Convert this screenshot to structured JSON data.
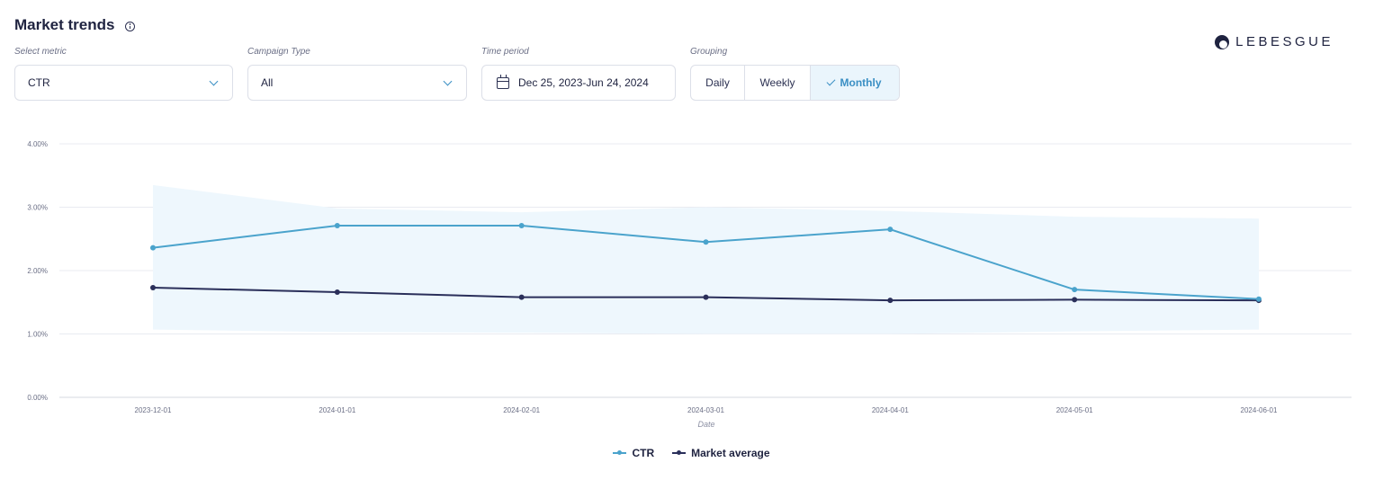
{
  "header": {
    "title": "Market trends",
    "logo_text": "LEBESGUE"
  },
  "filters": {
    "metric": {
      "label": "Select metric",
      "value": "CTR"
    },
    "campaign": {
      "label": "Campaign Type",
      "value": "All"
    },
    "period": {
      "label": "Time period",
      "value": "Dec 25, 2023-Jun 24, 2024"
    },
    "grouping": {
      "label": "Grouping",
      "options": [
        "Daily",
        "Weekly",
        "Monthly"
      ],
      "selected": "Monthly"
    }
  },
  "colors": {
    "ctr": "#4aa3cc",
    "market": "#2a2f5a",
    "band": "#eef7fd",
    "accent": "#3a8fc4"
  },
  "chart_data": {
    "type": "line",
    "title": "",
    "xlabel": "Date",
    "ylabel": "",
    "x": [
      "2023-12-01",
      "2024-01-01",
      "2024-02-01",
      "2024-03-01",
      "2024-04-01",
      "2024-05-01",
      "2024-06-01"
    ],
    "ylim": [
      0,
      4
    ],
    "yticks": [
      "0.00%",
      "1.00%",
      "2.00%",
      "3.00%",
      "4.00%"
    ],
    "grid": true,
    "legend_position": "bottom",
    "band": {
      "upper": [
        3.35,
        2.98,
        2.92,
        3.0,
        2.94,
        2.85,
        2.82
      ],
      "lower": [
        1.07,
        1.03,
        1.02,
        1.0,
        1.0,
        1.04,
        1.07
      ]
    },
    "series": [
      {
        "name": "CTR",
        "values": [
          2.36,
          2.71,
          2.71,
          2.45,
          2.65,
          1.7,
          1.55
        ]
      },
      {
        "name": "Market average",
        "values": [
          1.73,
          1.66,
          1.58,
          1.58,
          1.53,
          1.54,
          1.53
        ]
      }
    ]
  }
}
